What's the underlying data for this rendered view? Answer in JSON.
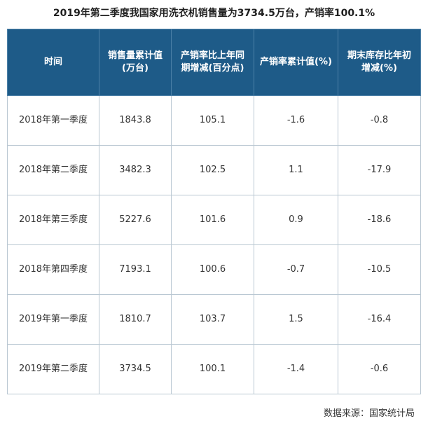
{
  "title": "2019年第二季度我国家用洗衣机销售量为3734.5万台，产销率100.1%",
  "source": "数据来源：国家统计局",
  "colors": {
    "header_bg": "#1e5b88",
    "header_text": "#ffffff",
    "grid": "#b9c7d2"
  },
  "chart_data": {
    "type": "table",
    "title": "2019年第二季度我国家用洗衣机销售量为3734.5万台，产销率100.1%",
    "columns": [
      "时间",
      "销售量累计值(万台)",
      "产销率比上年同期增减(百分点)",
      "产销率累计值(%)",
      "期末库存比年初增减(%)"
    ],
    "rows": [
      [
        "2018年第一季度",
        "1843.8",
        "105.1",
        "-1.6",
        "-0.8"
      ],
      [
        "2018年第二季度",
        "3482.3",
        "102.5",
        "1.1",
        "-17.9"
      ],
      [
        "2018年第三季度",
        "5227.6",
        "101.6",
        "0.9",
        "-18.6"
      ],
      [
        "2018年第四季度",
        "7193.1",
        "100.6",
        "-0.7",
        "-10.5"
      ],
      [
        "2019年第一季度",
        "1810.7",
        "103.7",
        "1.5",
        "-16.4"
      ],
      [
        "2019年第二季度",
        "3734.5",
        "100.1",
        "-1.4",
        "-0.6"
      ]
    ]
  }
}
